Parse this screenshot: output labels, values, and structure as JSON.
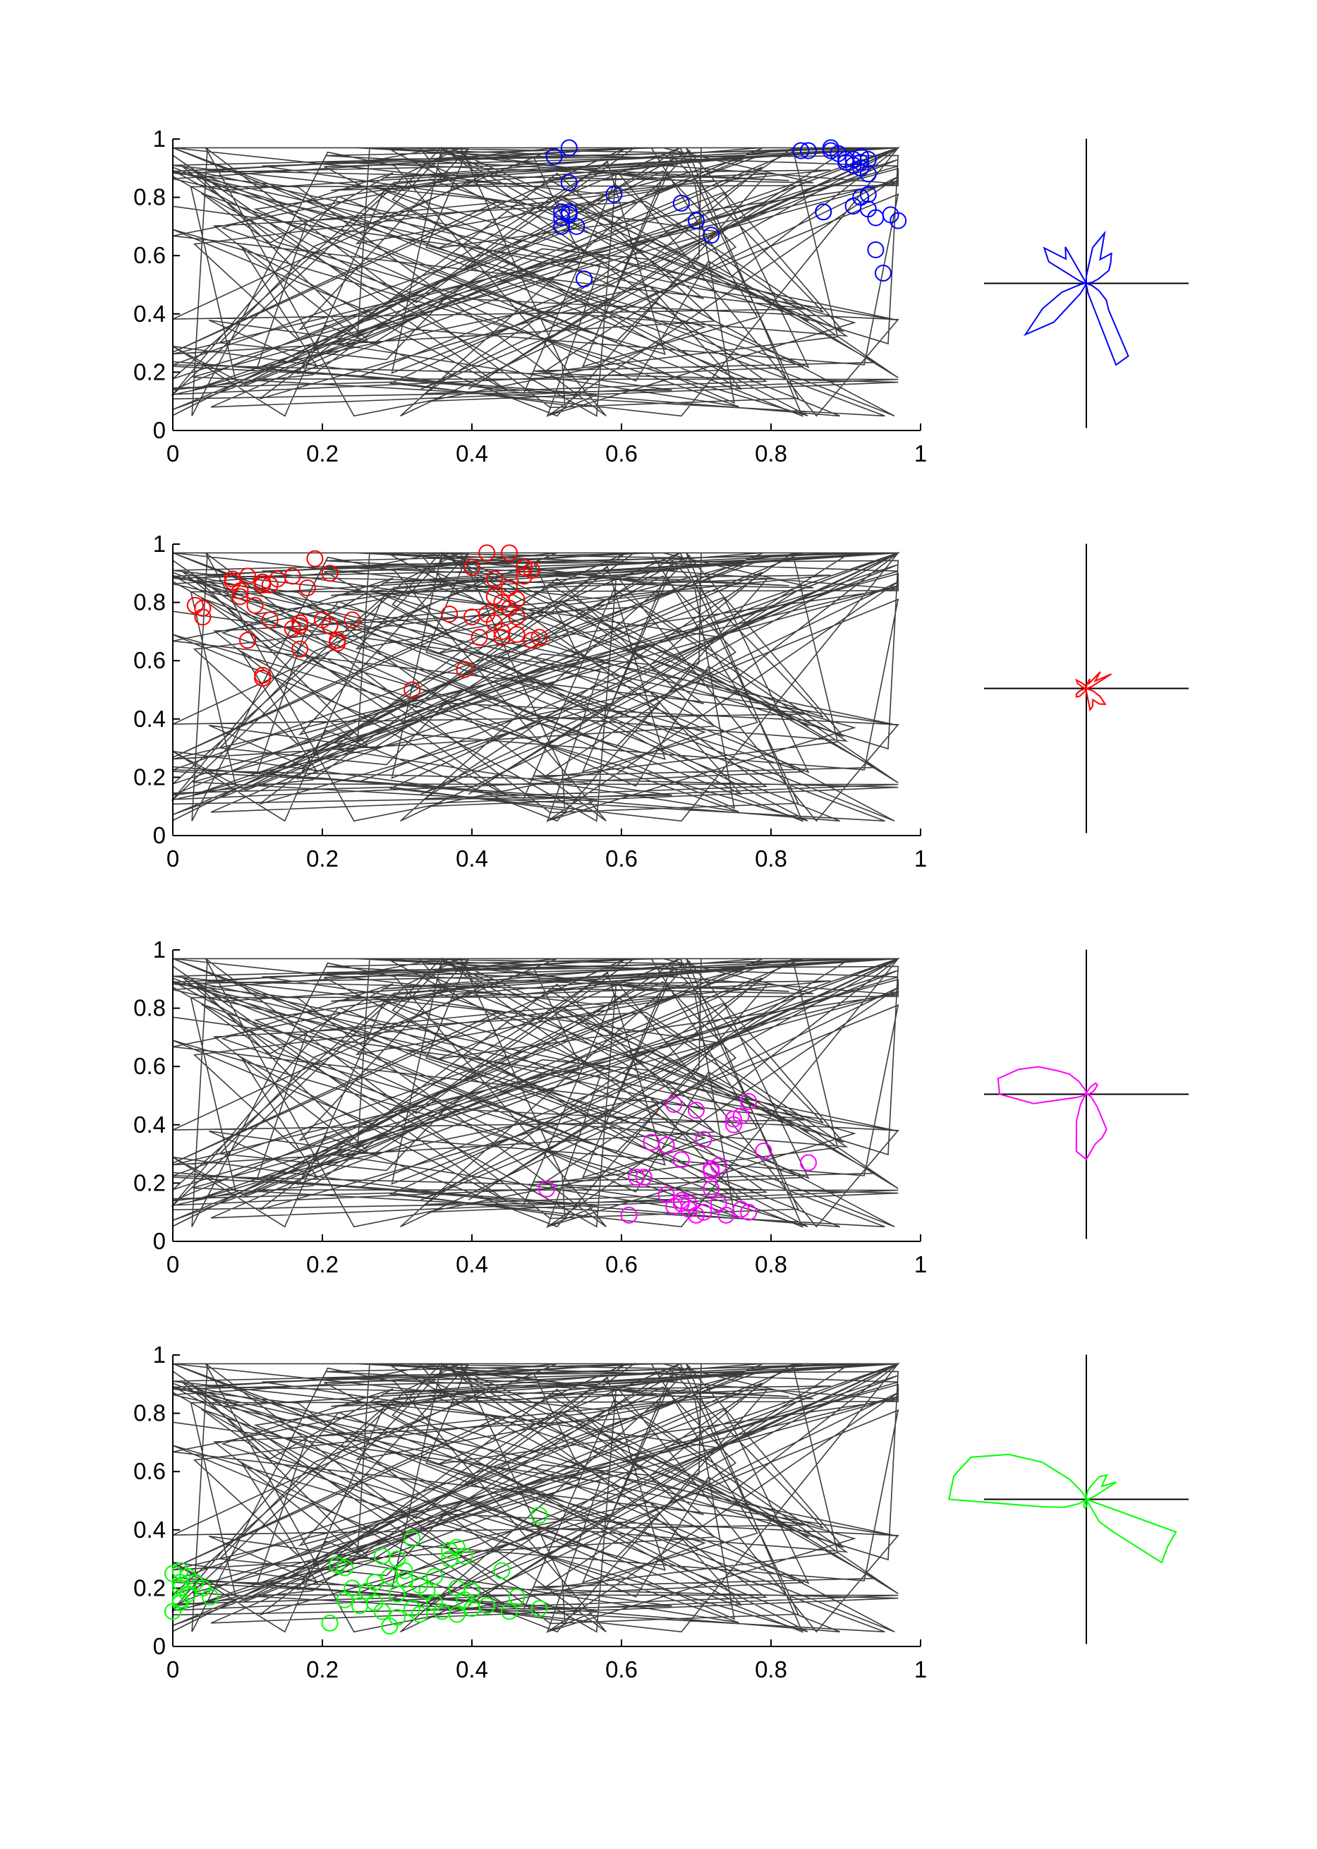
{
  "figure": {
    "x_ticks": [
      "0",
      "0.2",
      "0.4",
      "0.6",
      "0.8",
      "1"
    ],
    "y_ticks": [
      "0",
      "0.2",
      "0.4",
      "0.6",
      "0.8",
      "1"
    ]
  },
  "chart_data": [
    {
      "type": "scatter",
      "panel": 1,
      "color": "#0000ff",
      "xlim": [
        0,
        1
      ],
      "ylim": [
        0,
        1
      ],
      "x": [
        0.53,
        0.51,
        0.53,
        0.52,
        0.53,
        0.52,
        0.52,
        0.54,
        0.53,
        0.55,
        0.59,
        0.68,
        0.7,
        0.7,
        0.72,
        0.84,
        0.85,
        0.87,
        0.87,
        0.88,
        0.88,
        0.89,
        0.9,
        0.9,
        0.91,
        0.91,
        0.92,
        0.92,
        0.92,
        0.93,
        0.93,
        0.93,
        0.92,
        0.91,
        0.93,
        0.94,
        0.96,
        0.97,
        0.94,
        0.95
      ],
      "y": [
        0.97,
        0.94,
        0.85,
        0.75,
        0.74,
        0.73,
        0.7,
        0.7,
        0.75,
        0.52,
        0.81,
        0.78,
        0.72,
        0.72,
        0.67,
        0.96,
        0.96,
        0.75,
        0.75,
        0.96,
        0.97,
        0.95,
        0.93,
        0.92,
        0.91,
        0.93,
        0.92,
        0.9,
        0.94,
        0.93,
        0.88,
        0.81,
        0.8,
        0.77,
        0.76,
        0.73,
        0.74,
        0.72,
        0.62,
        0.54
      ],
      "direction_profile": [
        0.0,
        0.04,
        0.09,
        0.18,
        0.22,
        0.27,
        0.19,
        0.37,
        0.25,
        0.05,
        0.01,
        0.0,
        0.29,
        0.22,
        0.38,
        0.3,
        0.05,
        0.01,
        0.0,
        0.04,
        0.18,
        0.35,
        0.55,
        0.35,
        0.08,
        0.01,
        0.0,
        0.01,
        0.07,
        0.6,
        0.58,
        0.24,
        0.18,
        0.1,
        0.04,
        0.0
      ]
    },
    {
      "type": "scatter",
      "panel": 2,
      "color": "#ff0000",
      "xlim": [
        0,
        1
      ],
      "ylim": [
        0,
        1
      ],
      "x": [
        0.03,
        0.04,
        0.04,
        0.08,
        0.08,
        0.09,
        0.09,
        0.1,
        0.1,
        0.11,
        0.12,
        0.12,
        0.12,
        0.12,
        0.13,
        0.13,
        0.14,
        0.16,
        0.16,
        0.17,
        0.17,
        0.17,
        0.18,
        0.19,
        0.2,
        0.21,
        0.21,
        0.22,
        0.22,
        0.24,
        0.32,
        0.37,
        0.39,
        0.4,
        0.4,
        0.41,
        0.42,
        0.42,
        0.43,
        0.43,
        0.43,
        0.44,
        0.44,
        0.44,
        0.45,
        0.45,
        0.45,
        0.46,
        0.46,
        0.46,
        0.47,
        0.47,
        0.48,
        0.48,
        0.49
      ],
      "y": [
        0.79,
        0.78,
        0.75,
        0.88,
        0.87,
        0.84,
        0.82,
        0.89,
        0.67,
        0.79,
        0.86,
        0.87,
        0.55,
        0.54,
        0.74,
        0.86,
        0.88,
        0.89,
        0.71,
        0.72,
        0.73,
        0.64,
        0.85,
        0.95,
        0.74,
        0.72,
        0.9,
        0.67,
        0.66,
        0.74,
        0.5,
        0.76,
        0.57,
        0.92,
        0.75,
        0.68,
        0.97,
        0.76,
        0.88,
        0.73,
        0.82,
        0.7,
        0.8,
        0.68,
        0.97,
        0.78,
        0.85,
        0.81,
        0.75,
        0.69,
        0.92,
        0.89,
        0.67,
        0.91,
        0.68
      ],
      "direction_profile": [
        0.0,
        0.01,
        0.04,
        0.2,
        0.08,
        0.15,
        0.04,
        0.07,
        0.03,
        0.01,
        0.0,
        0.02,
        0.03,
        0.05,
        0.09,
        0.07,
        0.03,
        0.01,
        0.0,
        0.01,
        0.05,
        0.08,
        0.09,
        0.07,
        0.03,
        0.01,
        0.0,
        0.02,
        0.15,
        0.13,
        0.09,
        0.14,
        0.17,
        0.11,
        0.05,
        0.0
      ]
    },
    {
      "type": "scatter",
      "panel": 3,
      "color": "#ff00ff",
      "xlim": [
        0,
        1
      ],
      "ylim": [
        0,
        1
      ],
      "x": [
        0.5,
        0.61,
        0.62,
        0.63,
        0.64,
        0.66,
        0.66,
        0.67,
        0.67,
        0.68,
        0.68,
        0.68,
        0.69,
        0.69,
        0.7,
        0.7,
        0.71,
        0.71,
        0.72,
        0.72,
        0.72,
        0.73,
        0.73,
        0.74,
        0.75,
        0.75,
        0.76,
        0.76,
        0.77,
        0.77,
        0.79,
        0.85
      ],
      "y": [
        0.18,
        0.09,
        0.22,
        0.22,
        0.34,
        0.33,
        0.16,
        0.47,
        0.12,
        0.13,
        0.14,
        0.28,
        0.11,
        0.13,
        0.09,
        0.45,
        0.1,
        0.35,
        0.25,
        0.24,
        0.18,
        0.26,
        0.13,
        0.09,
        0.4,
        0.42,
        0.43,
        0.11,
        0.1,
        0.48,
        0.31,
        0.27
      ],
      "direction_profile": [
        0.0,
        0.02,
        0.05,
        0.07,
        0.1,
        0.1,
        0.06,
        0.02,
        0.01,
        0.0,
        0.02,
        0.04,
        0.1,
        0.18,
        0.25,
        0.38,
        0.5,
        0.62,
        0.6,
        0.37,
        0.06,
        0.02,
        0.0,
        0.02,
        0.08,
        0.2,
        0.4,
        0.45,
        0.35,
        0.32,
        0.28,
        0.12,
        0.06,
        0.04,
        0.02,
        0.0
      ]
    },
    {
      "type": "scatter",
      "panel": 4,
      "color": "#00ff00",
      "xlim": [
        0,
        1
      ],
      "ylim": [
        0,
        1
      ],
      "x": [
        0.0,
        0.0,
        0.01,
        0.01,
        0.01,
        0.01,
        0.01,
        0.02,
        0.02,
        0.03,
        0.04,
        0.05,
        0.21,
        0.22,
        0.23,
        0.23,
        0.24,
        0.25,
        0.26,
        0.27,
        0.27,
        0.28,
        0.28,
        0.29,
        0.29,
        0.3,
        0.3,
        0.3,
        0.31,
        0.31,
        0.32,
        0.32,
        0.33,
        0.33,
        0.34,
        0.35,
        0.35,
        0.36,
        0.37,
        0.37,
        0.38,
        0.38,
        0.38,
        0.39,
        0.39,
        0.4,
        0.4,
        0.42,
        0.44,
        0.45,
        0.46,
        0.49,
        0.49
      ],
      "y": [
        0.25,
        0.12,
        0.2,
        0.16,
        0.22,
        0.26,
        0.15,
        0.24,
        0.18,
        0.22,
        0.2,
        0.17,
        0.08,
        0.28,
        0.27,
        0.16,
        0.2,
        0.14,
        0.19,
        0.22,
        0.15,
        0.12,
        0.31,
        0.24,
        0.07,
        0.3,
        0.1,
        0.18,
        0.26,
        0.23,
        0.13,
        0.37,
        0.21,
        0.11,
        0.19,
        0.15,
        0.24,
        0.12,
        0.3,
        0.33,
        0.11,
        0.34,
        0.2,
        0.16,
        0.31,
        0.19,
        0.13,
        0.14,
        0.26,
        0.12,
        0.17,
        0.13,
        0.45
      ],
      "direction_profile": [
        0.0,
        0.02,
        0.06,
        0.24,
        0.14,
        0.22,
        0.18,
        0.1,
        0.06,
        0.02,
        0.0,
        0.01,
        0.06,
        0.18,
        0.4,
        0.62,
        0.85,
        0.93,
        0.95,
        0.3,
        0.16,
        0.06,
        0.01,
        0.0,
        0.03,
        0.05,
        0.06,
        0.05,
        0.03,
        0.0,
        0.18,
        0.3,
        0.68,
        0.65,
        0.66,
        0.0
      ]
    }
  ]
}
